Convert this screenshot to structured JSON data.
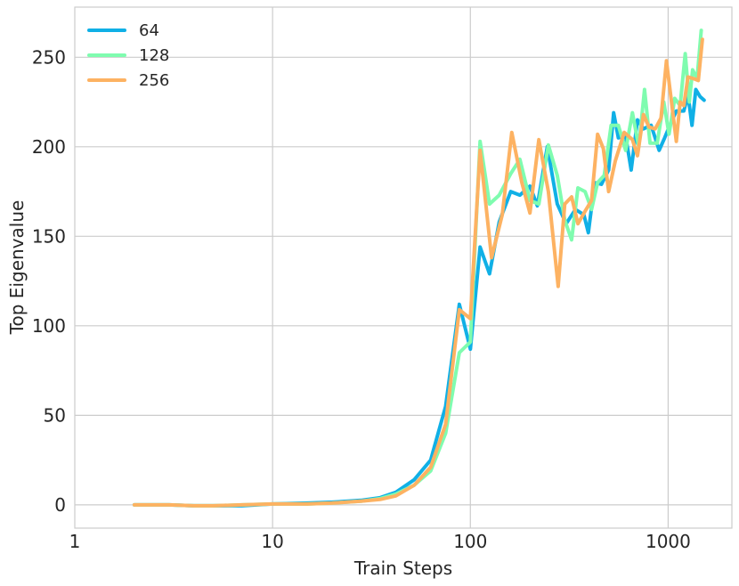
{
  "chart_data": {
    "type": "line",
    "xlabel": "Train Steps",
    "ylabel": "Top Eigenvalue",
    "x_scale": "log",
    "xlim": [
      1,
      2100
    ],
    "ylim": [
      -13,
      278
    ],
    "x_ticks": [
      1,
      10,
      100,
      1000
    ],
    "x_tick_labels": [
      "1",
      "10",
      "100",
      "1000"
    ],
    "y_ticks": [
      0,
      50,
      100,
      150,
      200,
      250
    ],
    "y_tick_labels": [
      "0",
      "50",
      "100",
      "150",
      "200",
      "250"
    ],
    "grid": true,
    "legend_position": "top-left",
    "series": [
      {
        "name": "64",
        "color": "#10b0e6",
        "points": [
          [
            2,
            0
          ],
          [
            2.5,
            0
          ],
          [
            3,
            0
          ],
          [
            4,
            -0.5
          ],
          [
            5,
            -0.5
          ],
          [
            7,
            -0.5
          ],
          [
            10,
            0.5
          ],
          [
            15,
            1
          ],
          [
            20,
            1.5
          ],
          [
            28,
            2.5
          ],
          [
            35,
            4
          ],
          [
            42,
            7
          ],
          [
            52,
            14
          ],
          [
            63,
            25
          ],
          [
            75,
            55
          ],
          [
            88,
            112
          ],
          [
            100,
            87
          ],
          [
            112,
            144
          ],
          [
            125,
            129
          ],
          [
            140,
            158
          ],
          [
            160,
            175
          ],
          [
            178,
            173
          ],
          [
            200,
            178
          ],
          [
            218,
            167
          ],
          [
            245,
            200
          ],
          [
            275,
            168
          ],
          [
            305,
            157
          ],
          [
            340,
            165
          ],
          [
            375,
            162
          ],
          [
            395,
            152
          ],
          [
            425,
            180
          ],
          [
            460,
            179
          ],
          [
            500,
            187
          ],
          [
            530,
            219
          ],
          [
            560,
            205
          ],
          [
            610,
            206
          ],
          [
            650,
            187
          ],
          [
            700,
            215
          ],
          [
            750,
            210
          ],
          [
            820,
            212
          ],
          [
            900,
            198
          ],
          [
            960,
            205
          ],
          [
            1020,
            212
          ],
          [
            1100,
            220
          ],
          [
            1200,
            220
          ],
          [
            1260,
            229
          ],
          [
            1320,
            212
          ],
          [
            1380,
            232
          ],
          [
            1450,
            228
          ],
          [
            1520,
            226
          ]
        ]
      },
      {
        "name": "128",
        "color": "#7ffcaf",
        "points": [
          [
            2,
            0
          ],
          [
            2.5,
            0
          ],
          [
            3,
            0
          ],
          [
            4,
            -0.5
          ],
          [
            5,
            -0.5
          ],
          [
            7,
            0
          ],
          [
            10,
            0.5
          ],
          [
            15,
            0.5
          ],
          [
            20,
            1
          ],
          [
            28,
            2
          ],
          [
            35,
            3.5
          ],
          [
            42,
            6
          ],
          [
            52,
            11
          ],
          [
            63,
            19
          ],
          [
            75,
            40
          ],
          [
            88,
            85
          ],
          [
            100,
            91
          ],
          [
            112,
            203
          ],
          [
            125,
            168
          ],
          [
            140,
            173
          ],
          [
            160,
            185
          ],
          [
            178,
            193
          ],
          [
            200,
            170
          ],
          [
            222,
            168
          ],
          [
            248,
            201
          ],
          [
            275,
            184
          ],
          [
            300,
            159
          ],
          [
            325,
            148
          ],
          [
            350,
            177
          ],
          [
            380,
            175
          ],
          [
            410,
            165
          ],
          [
            440,
            180
          ],
          [
            475,
            184
          ],
          [
            515,
            212
          ],
          [
            560,
            212
          ],
          [
            610,
            198
          ],
          [
            660,
            219
          ],
          [
            710,
            200
          ],
          [
            760,
            232
          ],
          [
            810,
            202
          ],
          [
            880,
            202
          ],
          [
            950,
            225
          ],
          [
            1010,
            207
          ],
          [
            1080,
            227
          ],
          [
            1150,
            223
          ],
          [
            1220,
            252
          ],
          [
            1280,
            225
          ],
          [
            1330,
            243
          ],
          [
            1400,
            238
          ],
          [
            1470,
            265
          ]
        ]
      },
      {
        "name": "256",
        "color": "#fdb262",
        "points": [
          [
            2,
            0
          ],
          [
            2.5,
            0
          ],
          [
            3,
            0
          ],
          [
            4,
            -0.5
          ],
          [
            5,
            -0.5
          ],
          [
            7,
            0
          ],
          [
            10,
            0.5
          ],
          [
            15,
            0.5
          ],
          [
            20,
            1
          ],
          [
            28,
            2
          ],
          [
            35,
            3
          ],
          [
            42,
            5
          ],
          [
            52,
            11
          ],
          [
            63,
            21
          ],
          [
            75,
            45
          ],
          [
            88,
            109
          ],
          [
            100,
            104
          ],
          [
            112,
            198
          ],
          [
            128,
            138
          ],
          [
            145,
            162
          ],
          [
            162,
            208
          ],
          [
            182,
            180
          ],
          [
            200,
            163
          ],
          [
            222,
            204
          ],
          [
            248,
            175
          ],
          [
            278,
            122
          ],
          [
            300,
            168
          ],
          [
            325,
            172
          ],
          [
            350,
            157
          ],
          [
            380,
            164
          ],
          [
            410,
            170
          ],
          [
            440,
            207
          ],
          [
            470,
            199
          ],
          [
            500,
            175
          ],
          [
            540,
            192
          ],
          [
            600,
            208
          ],
          [
            660,
            204
          ],
          [
            700,
            195
          ],
          [
            750,
            218
          ],
          [
            800,
            211
          ],
          [
            860,
            210
          ],
          [
            920,
            216
          ],
          [
            980,
            248
          ],
          [
            1040,
            225
          ],
          [
            1100,
            203
          ],
          [
            1150,
            225
          ],
          [
            1200,
            223
          ],
          [
            1260,
            239
          ],
          [
            1350,
            238
          ],
          [
            1420,
            237
          ],
          [
            1490,
            260
          ]
        ]
      }
    ]
  }
}
